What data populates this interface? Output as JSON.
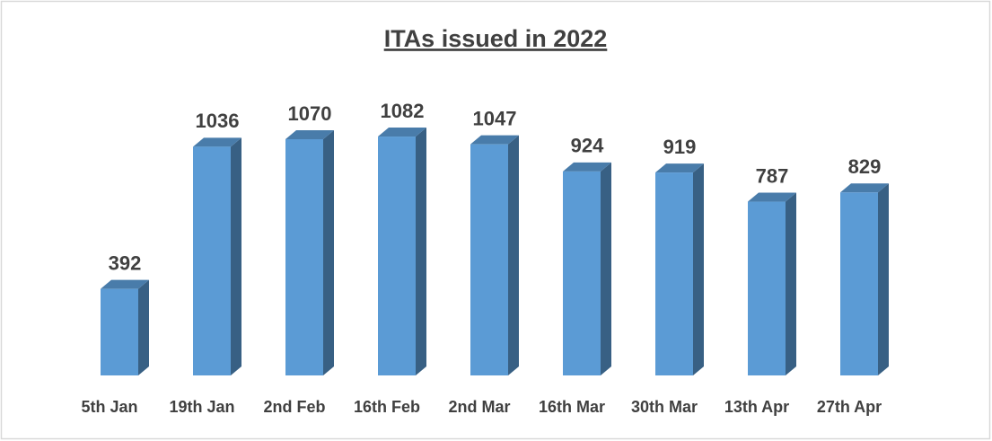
{
  "chart_data": {
    "type": "bar",
    "title": "ITAs issued in 2022",
    "categories": [
      "5th Jan",
      "19th Jan",
      "2nd Feb",
      "16th Feb",
      "2nd Mar",
      "16th Mar",
      "30th Mar",
      "13th Apr",
      "27th Apr"
    ],
    "values": [
      392,
      1036,
      1070,
      1082,
      1047,
      924,
      919,
      787,
      829
    ],
    "color": "#5b9bd5"
  }
}
